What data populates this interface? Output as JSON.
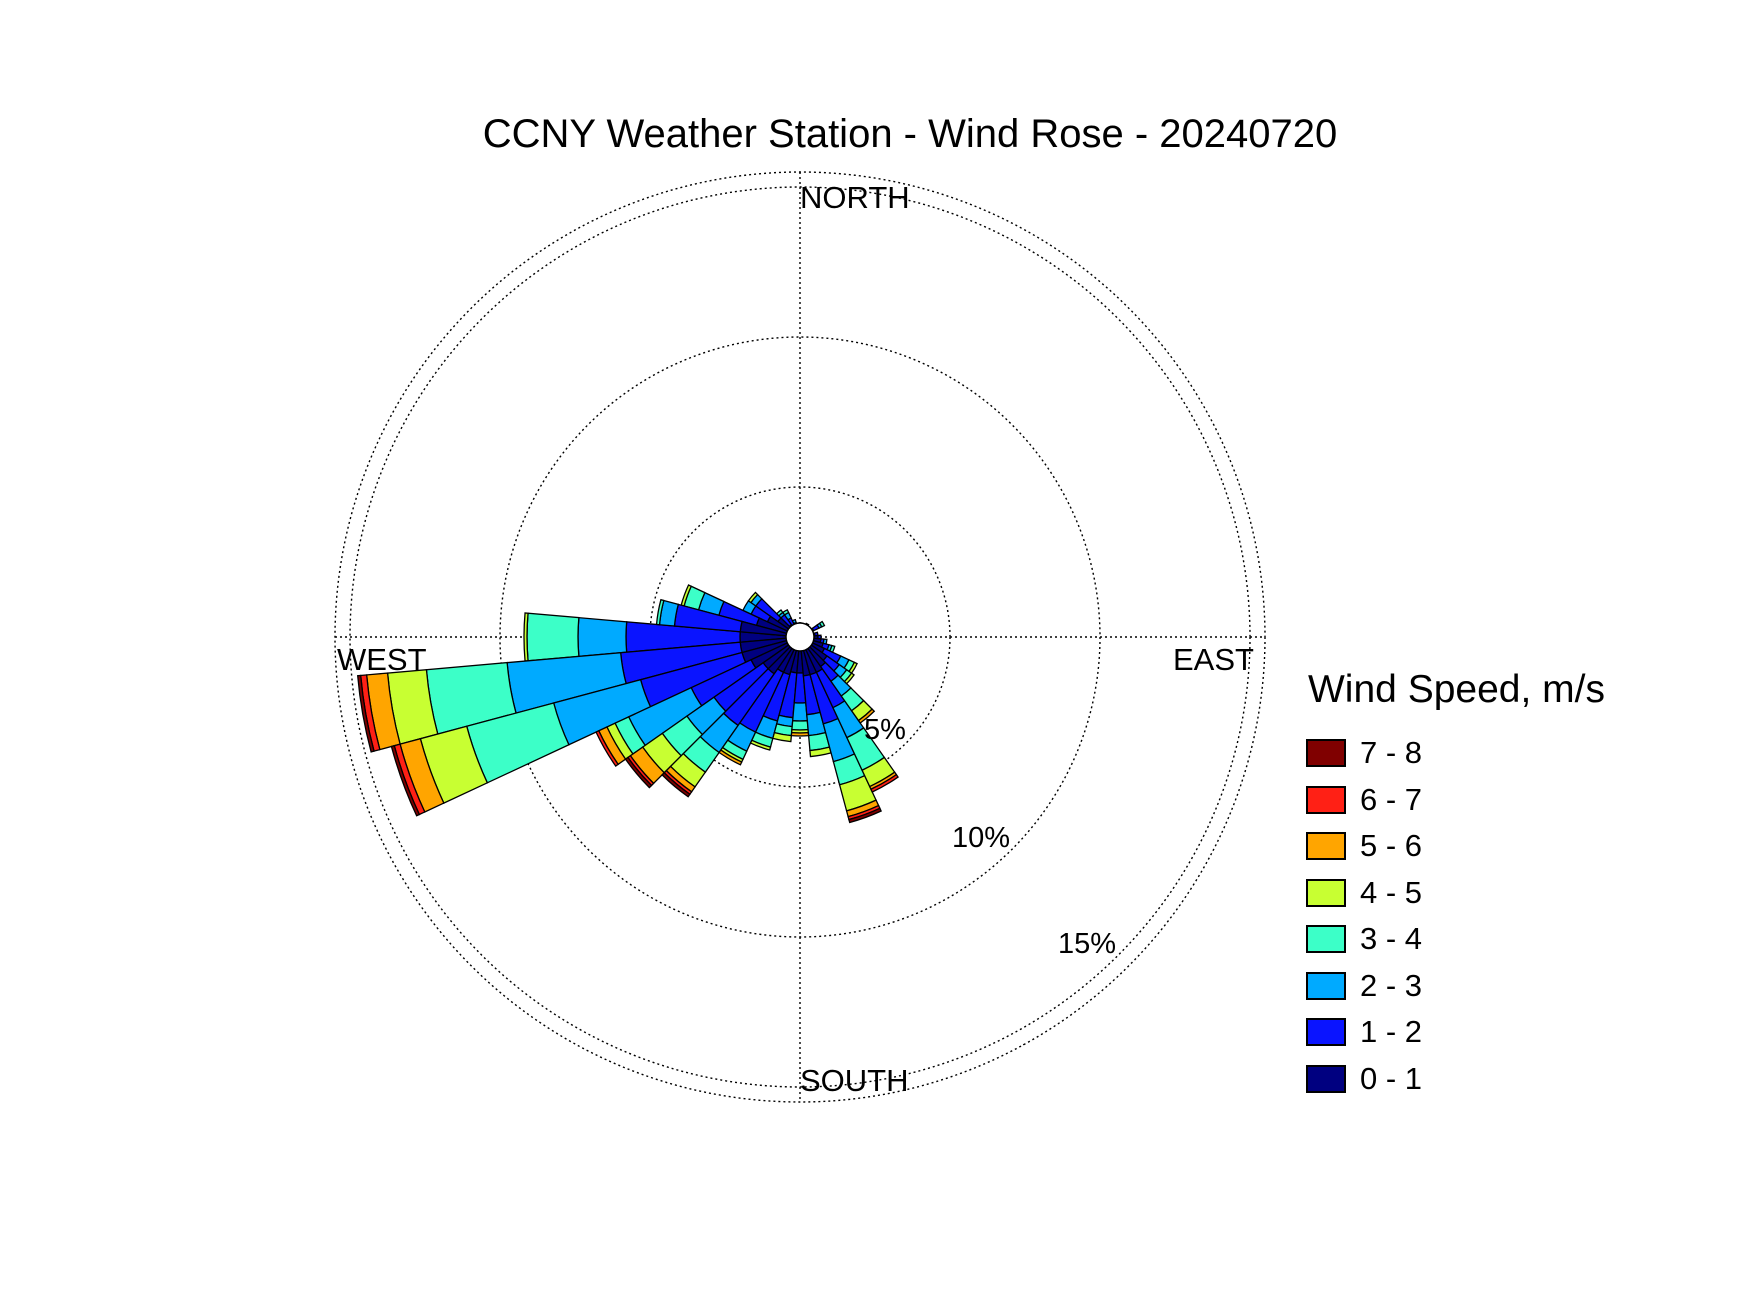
{
  "title": "CCNY Weather Station - Wind Rose - 20240720",
  "directions": {
    "north": "NORTH",
    "south": "SOUTH",
    "east": "EAST",
    "west": "WEST"
  },
  "ring_labels": [
    "5%",
    "10%",
    "15%"
  ],
  "legend_title": "Wind Speed, m/s",
  "legend": [
    {
      "label": "7 - 8",
      "color": "#800000"
    },
    {
      "label": "6 - 7",
      "color": "#ff2015"
    },
    {
      "label": "5 - 6",
      "color": "#ffa500"
    },
    {
      "label": "4 - 5",
      "color": "#c8ff32"
    },
    {
      "label": "3 - 4",
      "color": "#3cffc8"
    },
    {
      "label": "2 - 3",
      "color": "#00aaff"
    },
    {
      "label": "1 - 2",
      "color": "#0a14ff"
    },
    {
      "label": "0 - 1",
      "color": "#000080"
    }
  ],
  "chart_data": {
    "type": "wind_rose",
    "title": "CCNY Weather Station - Wind Rose - 20240720",
    "radial_unit": "%",
    "radial_rings": [
      5,
      10,
      15
    ],
    "rlim": [
      0,
      15.5
    ],
    "sector_width_deg": 10,
    "speed_bins": [
      "0 - 1",
      "1 - 2",
      "2 - 3",
      "3 - 4",
      "4 - 5",
      "5 - 6",
      "6 - 7",
      "7 - 8"
    ],
    "sectors": [
      {
        "dir": 270,
        "cum": [
          2.0,
          5.8,
          7.4,
          9.1,
          9.2,
          9.2,
          9.2,
          9.2
        ]
      },
      {
        "dir": 260,
        "cum": [
          2.0,
          6.0,
          9.8,
          12.5,
          13.8,
          14.5,
          14.7,
          14.8
        ]
      },
      {
        "dir": 250,
        "cum": [
          2.0,
          5.5,
          8.5,
          11.5,
          13.1,
          13.8,
          14.0,
          14.1
        ]
      },
      {
        "dir": 240,
        "cum": [
          1.8,
          4.0,
          6.3,
          6.8,
          7.1,
          7.4,
          7.5,
          7.5
        ]
      },
      {
        "dir": 230,
        "cum": [
          1.5,
          3.5,
          4.6,
          5.6,
          6.4,
          6.9,
          7.0,
          7.1
        ]
      },
      {
        "dir": 220,
        "cum": [
          1.5,
          3.6,
          4.7,
          5.5,
          6.1,
          6.3,
          6.4,
          6.5
        ]
      },
      {
        "dir": 210,
        "cum": [
          1.3,
          3.5,
          4.2,
          4.5,
          4.6,
          4.7,
          4.7,
          4.7
        ]
      },
      {
        "dir": 200,
        "cum": [
          1.3,
          2.9,
          3.5,
          3.8,
          3.9,
          3.9,
          3.9,
          3.9
        ]
      },
      {
        "dir": 190,
        "cum": [
          1.2,
          2.7,
          3.0,
          3.3,
          3.5,
          3.5,
          3.5,
          3.5
        ]
      },
      {
        "dir": 180,
        "cum": [
          1.2,
          2.2,
          2.8,
          3.1,
          3.2,
          3.3,
          3.3,
          3.3
        ]
      },
      {
        "dir": 170,
        "cum": [
          1.3,
          2.6,
          3.3,
          3.8,
          4.0,
          4.0,
          4.0,
          4.0
        ]
      },
      {
        "dir": 160,
        "cum": [
          1.3,
          3.0,
          4.3,
          5.1,
          6.0,
          6.2,
          6.3,
          6.4
        ]
      },
      {
        "dir": 150,
        "cum": [
          1.3,
          2.6,
          3.7,
          4.9,
          5.5,
          5.6,
          5.7,
          5.7
        ]
      },
      {
        "dir": 140,
        "cum": [
          1.2,
          1.8,
          2.4,
          3.0,
          3.4,
          3.5,
          3.5,
          3.5
        ]
      },
      {
        "dir": 130,
        "cum": [
          1.1,
          1.6,
          1.9,
          2.1,
          2.2,
          2.2,
          2.2,
          2.2
        ]
      },
      {
        "dir": 120,
        "cum": [
          0.9,
          1.5,
          1.8,
          2.0,
          2.1,
          2.1,
          2.1,
          2.1
        ]
      },
      {
        "dir": 110,
        "cum": [
          0.8,
          1.0,
          1.1,
          1.2,
          1.2,
          1.2,
          1.2,
          1.2
        ]
      },
      {
        "dir": 100,
        "cum": [
          0.7,
          0.8,
          0.9,
          0.9,
          0.9,
          0.9,
          0.9,
          0.9
        ]
      },
      {
        "dir": 90,
        "cum": [
          0.6,
          0.7,
          0.7,
          0.7,
          0.7,
          0.7,
          0.7,
          0.7
        ]
      },
      {
        "dir": 80,
        "cum": [
          0.5,
          0.6,
          0.6,
          0.6,
          0.6,
          0.6,
          0.6,
          0.6
        ]
      },
      {
        "dir": 60,
        "cum": [
          0.5,
          0.7,
          0.8,
          0.9,
          0.9,
          0.9,
          0.9,
          0.9
        ]
      },
      {
        "dir": 30,
        "cum": [
          0.3,
          0.4,
          0.5,
          0.5,
          0.5,
          0.5,
          0.5,
          0.5
        ]
      },
      {
        "dir": 0,
        "cum": [
          0.2,
          0.3,
          0.3,
          0.3,
          0.3,
          0.3,
          0.3,
          0.3
        ]
      },
      {
        "dir": 340,
        "cum": [
          0.3,
          0.5,
          0.6,
          0.6,
          0.6,
          0.6,
          0.6,
          0.6
        ]
      },
      {
        "dir": 330,
        "cum": [
          0.4,
          0.7,
          0.9,
          1.0,
          1.0,
          1.0,
          1.0,
          1.0
        ]
      },
      {
        "dir": 320,
        "cum": [
          0.5,
          0.9,
          1.0,
          1.1,
          1.1,
          1.1,
          1.1,
          1.1
        ]
      },
      {
        "dir": 310,
        "cum": [
          0.9,
          1.8,
          2.0,
          2.0,
          2.1,
          2.1,
          2.1,
          2.1
        ]
      },
      {
        "dir": 300,
        "cum": [
          1.2,
          1.8,
          2.1,
          2.1,
          2.1,
          2.1,
          2.1,
          2.1
        ]
      },
      {
        "dir": 290,
        "cum": [
          1.5,
          2.8,
          3.5,
          4.0,
          4.1,
          4.1,
          4.1,
          4.1
        ]
      },
      {
        "dir": 280,
        "cum": [
          2.0,
          4.2,
          4.7,
          4.8,
          4.8,
          4.8,
          4.8,
          4.8
        ]
      }
    ]
  }
}
